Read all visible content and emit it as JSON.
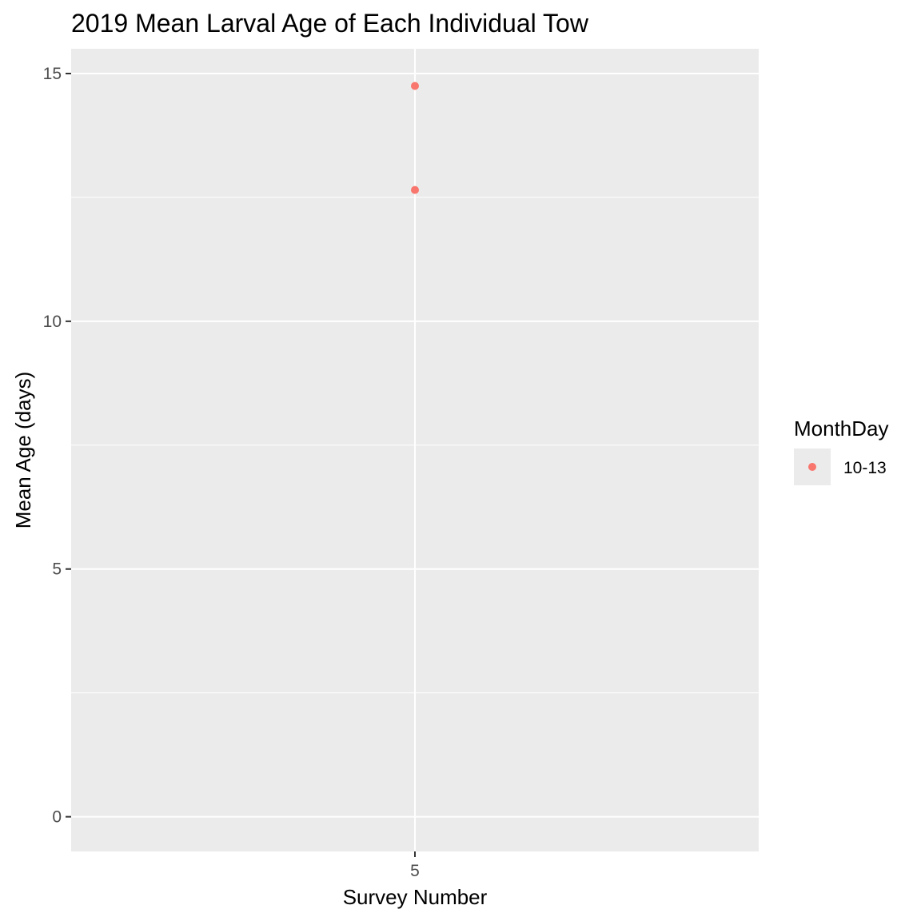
{
  "chart_data": {
    "type": "scatter",
    "title": "2019 Mean Larval Age of Each Individual Tow",
    "xlabel": "Survey Number",
    "ylabel": "Mean Age (days)",
    "x_categories": [
      "5"
    ],
    "y_ticks": [
      0,
      5,
      10,
      15
    ],
    "y_tick_labels": [
      "0",
      "5",
      "10",
      "15"
    ],
    "ylim": [
      -0.7,
      15.5
    ],
    "grid": true,
    "legend": {
      "title": "MonthDay",
      "position": "right",
      "entries": [
        {
          "label": "10-13",
          "color": "#F8766D"
        }
      ]
    },
    "series": [
      {
        "name": "10-13",
        "color": "#F8766D",
        "points": [
          {
            "x": "5",
            "y": 14.75
          },
          {
            "x": "5",
            "y": 12.65
          }
        ]
      }
    ]
  }
}
